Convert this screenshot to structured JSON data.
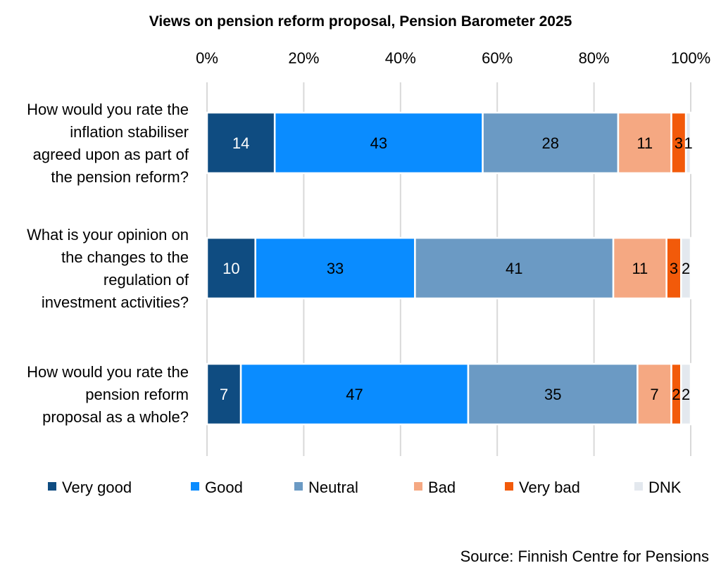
{
  "chart_data": {
    "type": "bar",
    "orientation": "horizontal",
    "stacked": "percent",
    "title": "Views on pension reform proposal, Pension Barometer 2025",
    "xlim": [
      0,
      100
    ],
    "x_ticks": [
      "0%",
      "20%",
      "40%",
      "60%",
      "80%",
      "100%"
    ],
    "x_tick_values": [
      0,
      20,
      40,
      60,
      80,
      100
    ],
    "grid": true,
    "legend_position": "bottom",
    "categories": [
      [
        "How would you rate the",
        "inflation stabiliser",
        "agreed upon as part of",
        "the pension reform?"
      ],
      [
        "What is your opinion on",
        "the changes to the",
        "regulation of",
        "investment activities?"
      ],
      [
        "How would you rate the",
        "pension reform",
        "proposal as a whole?"
      ]
    ],
    "series": [
      {
        "name": "Very good",
        "color": "#0f4c81",
        "label_color": "#ffffff",
        "values": [
          14,
          10,
          7
        ]
      },
      {
        "name": "Good",
        "color": "#0a8cff",
        "label_color": "#000000",
        "values": [
          43,
          33,
          47
        ]
      },
      {
        "name": "Neutral",
        "color": "#6b9ac4",
        "label_color": "#000000",
        "values": [
          28,
          41,
          35
        ]
      },
      {
        "name": "Bad",
        "color": "#f5a882",
        "label_color": "#000000",
        "values": [
          11,
          11,
          7
        ]
      },
      {
        "name": "Very bad",
        "color": "#f25a0a",
        "label_color": "#000000",
        "values": [
          3,
          3,
          2
        ]
      },
      {
        "name": "DNK",
        "color": "#e3e8ee",
        "label_color": "#000000",
        "values": [
          1,
          2,
          2
        ]
      }
    ],
    "source": "Source: Finnish Centre for Pensions"
  }
}
